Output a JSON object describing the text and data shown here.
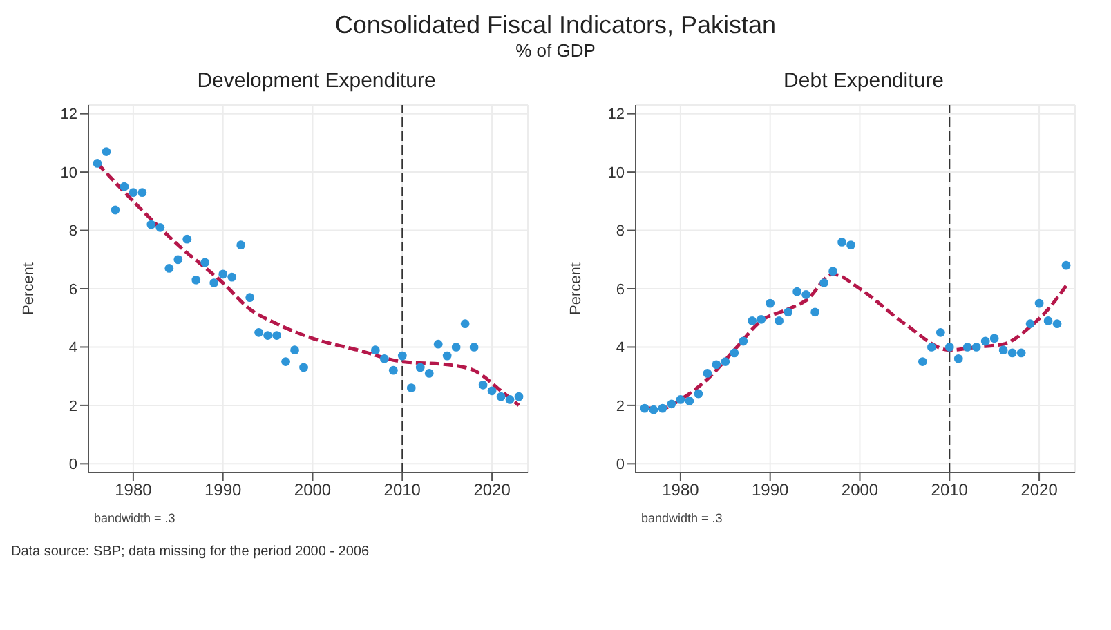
{
  "chart_data": [
    {
      "type": "scatter",
      "title": "Development Expenditure",
      "ylabel": "Percent",
      "annotations": [
        "bandwidth = .3",
        "Consolidated Fiscal Indicators, Pakistan",
        "% of GDP",
        "Data source: SBP; data missing for the period 2000 - 2006"
      ],
      "xlim": [
        1975,
        2024
      ],
      "xticks": [
        1980,
        1990,
        2000,
        2010,
        2020
      ],
      "ylim": [
        -0.3,
        12.3
      ],
      "yticks": [
        0,
        2,
        4,
        6,
        8,
        10,
        12
      ],
      "grid": true,
      "legend": false,
      "ref_lines": [
        {
          "axis": "x",
          "value": 2010,
          "color": "#333333",
          "line_style": "dashed"
        }
      ],
      "series": [
        {
          "type": "scatter",
          "marker": "circle",
          "color": "#2e95d8",
          "x": [
            1976,
            1977,
            1978,
            1979,
            1980,
            1981,
            1982,
            1983,
            1984,
            1985,
            1986,
            1987,
            1988,
            1989,
            1990,
            1991,
            1992,
            1993,
            1994,
            1995,
            1996,
            1997,
            1998,
            1999,
            2007,
            2008,
            2009,
            2010,
            2011,
            2012,
            2013,
            2014,
            2015,
            2016,
            2017,
            2018,
            2019,
            2020,
            2021,
            2022,
            2023
          ],
          "values": [
            10.3,
            10.7,
            8.7,
            9.5,
            9.3,
            9.3,
            8.2,
            8.1,
            6.7,
            7.0,
            7.7,
            6.3,
            6.9,
            6.2,
            6.5,
            6.4,
            7.5,
            5.7,
            4.5,
            4.4,
            4.4,
            3.5,
            3.9,
            3.3,
            3.9,
            3.6,
            3.2,
            3.7,
            2.6,
            3.3,
            3.1,
            4.1,
            3.7,
            4.0,
            4.8,
            4.0,
            2.7,
            2.5,
            2.3,
            2.2,
            2.3
          ]
        },
        {
          "type": "line",
          "line_style": "dashed",
          "color": "#b5174a",
          "x": [
            1976,
            1980,
            1985,
            1990,
            1993,
            1996,
            2000,
            2005,
            2010,
            2015,
            2018,
            2021,
            2023
          ],
          "values": [
            10.3,
            9.0,
            7.5,
            6.2,
            5.3,
            4.8,
            4.3,
            3.9,
            3.5,
            3.4,
            3.2,
            2.5,
            2.0
          ]
        }
      ]
    },
    {
      "type": "scatter",
      "title": "Debt Expenditure",
      "ylabel": "Percent",
      "annotations": [
        "bandwidth = .3"
      ],
      "xlim": [
        1975,
        2024
      ],
      "xticks": [
        1980,
        1990,
        2000,
        2010,
        2020
      ],
      "ylim": [
        -0.3,
        12.3
      ],
      "yticks": [
        0,
        2,
        4,
        6,
        8,
        10,
        12
      ],
      "grid": true,
      "legend": false,
      "ref_lines": [
        {
          "axis": "x",
          "value": 2010,
          "color": "#333333",
          "line_style": "dashed"
        }
      ],
      "series": [
        {
          "type": "scatter",
          "marker": "circle",
          "color": "#2e95d8",
          "x": [
            1976,
            1977,
            1978,
            1979,
            1980,
            1981,
            1982,
            1983,
            1984,
            1985,
            1986,
            1987,
            1988,
            1989,
            1990,
            1991,
            1992,
            1993,
            1994,
            1995,
            1996,
            1997,
            1998,
            1999,
            2007,
            2008,
            2009,
            2010,
            2011,
            2012,
            2013,
            2014,
            2015,
            2016,
            2017,
            2018,
            2019,
            2020,
            2021,
            2022,
            2023
          ],
          "values": [
            1.9,
            1.85,
            1.9,
            2.05,
            2.2,
            2.15,
            2.4,
            3.1,
            3.4,
            3.5,
            3.8,
            4.2,
            4.9,
            4.95,
            5.5,
            4.9,
            5.2,
            5.9,
            5.8,
            5.2,
            6.2,
            6.6,
            7.6,
            7.5,
            3.5,
            4.0,
            4.5,
            4.0,
            3.6,
            4.0,
            4.0,
            4.2,
            4.3,
            3.9,
            3.8,
            3.8,
            4.8,
            5.5,
            4.9,
            4.8,
            6.8
          ]
        },
        {
          "type": "line",
          "line_style": "dashed",
          "color": "#b5174a",
          "x": [
            1976,
            1978,
            1980,
            1983,
            1986,
            1989,
            1992,
            1994,
            1997,
            2000,
            2005,
            2010,
            2013,
            2016,
            2019,
            2021,
            2023
          ],
          "values": [
            1.9,
            1.9,
            2.2,
            2.9,
            3.9,
            4.9,
            5.3,
            5.6,
            6.5,
            6.0,
            4.8,
            3.9,
            4.0,
            4.1,
            4.7,
            5.3,
            6.1
          ]
        }
      ]
    }
  ]
}
